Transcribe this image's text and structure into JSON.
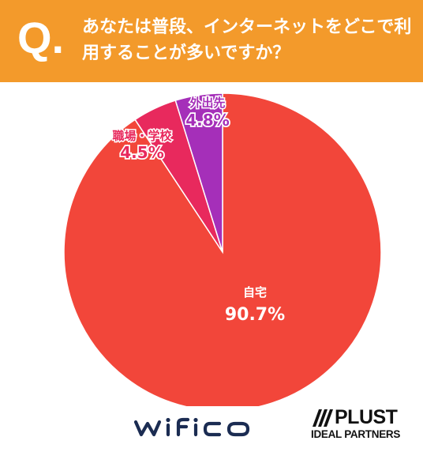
{
  "header": {
    "q_mark": "Q.",
    "question": "あなたは普段、インターネットをどこで利用することが多いですか？",
    "background": "#f39a2b"
  },
  "chart_data": {
    "type": "pie",
    "slices": [
      {
        "label": "自宅",
        "value": 90.7,
        "value_label": "90.7%",
        "color": "#f2463a"
      },
      {
        "label": "職場・学校",
        "value": 4.5,
        "value_label": "4.5%",
        "color": "#e8295d"
      },
      {
        "label": "外出先",
        "value": 4.8,
        "value_label": "4.8%",
        "color": "#a52fb9"
      }
    ]
  },
  "footer": {
    "wifico_logo": "wifico",
    "plust_name": "PLUST",
    "plust_sub": "IDEAL PARTNERS"
  }
}
